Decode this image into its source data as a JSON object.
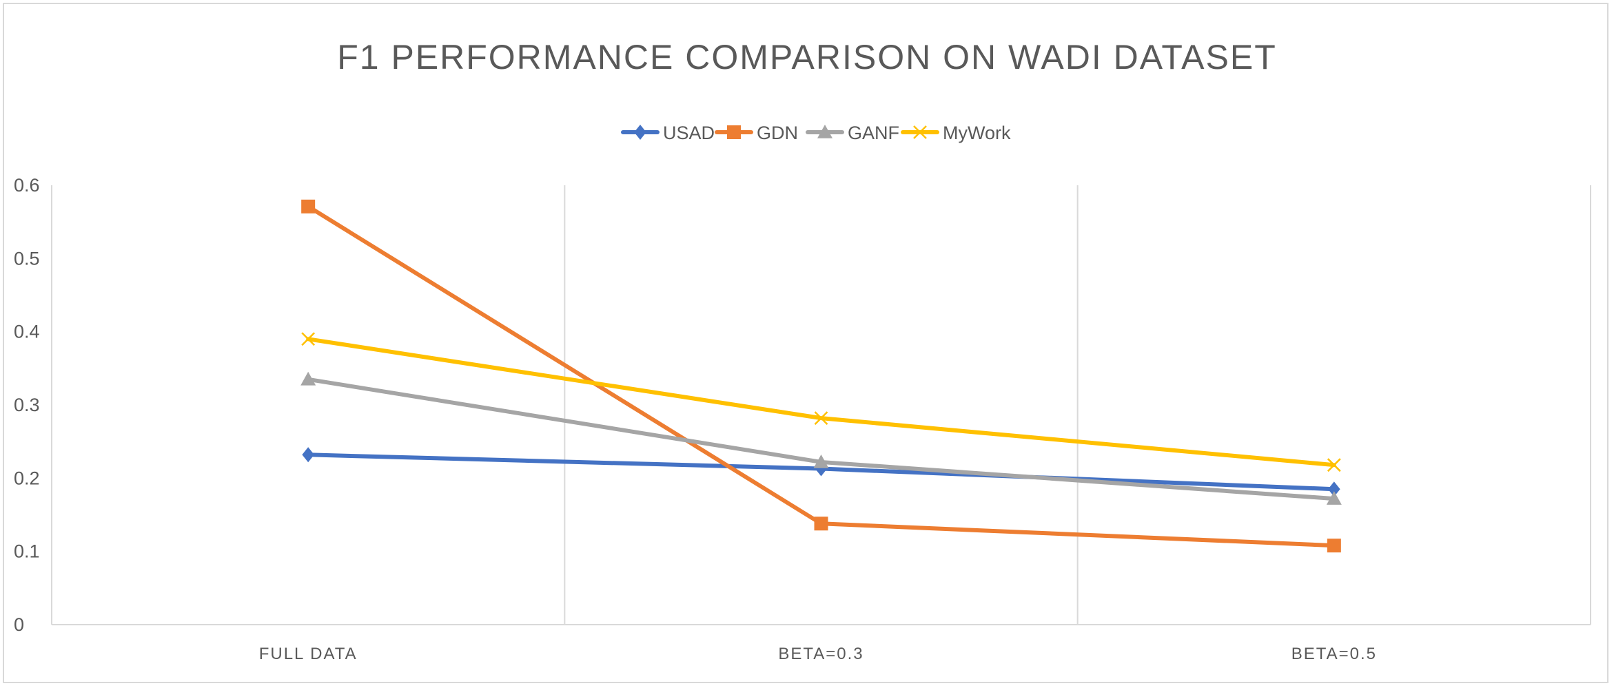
{
  "chart_data": {
    "type": "line",
    "title": "F1 PERFORMANCE COMPARISON ON WADI DATASET",
    "categories": [
      "FULL DATA",
      "BETA=0.3",
      "BETA=0.5"
    ],
    "ylim": [
      0,
      0.6
    ],
    "yticks": [
      0,
      0.1,
      0.2,
      0.3,
      0.4,
      0.5,
      0.6
    ],
    "ytick_labels": [
      "0",
      "0.1",
      "0.2",
      "0.3",
      "0.4",
      "0.5",
      "0.6"
    ],
    "grid": "vertical",
    "legend_position": "top",
    "series": [
      {
        "name": "USAD",
        "values": [
          0.232,
          0.213,
          0.185
        ],
        "color": "#4472C4",
        "marker": "diamond"
      },
      {
        "name": "GDN",
        "values": [
          0.571,
          0.138,
          0.108
        ],
        "color": "#ED7D31",
        "marker": "square"
      },
      {
        "name": "GANF",
        "values": [
          0.335,
          0.222,
          0.172
        ],
        "color": "#A5A5A5",
        "marker": "triangle"
      },
      {
        "name": "MyWork",
        "values": [
          0.39,
          0.282,
          0.218
        ],
        "color": "#FFC000",
        "marker": "x"
      }
    ]
  }
}
